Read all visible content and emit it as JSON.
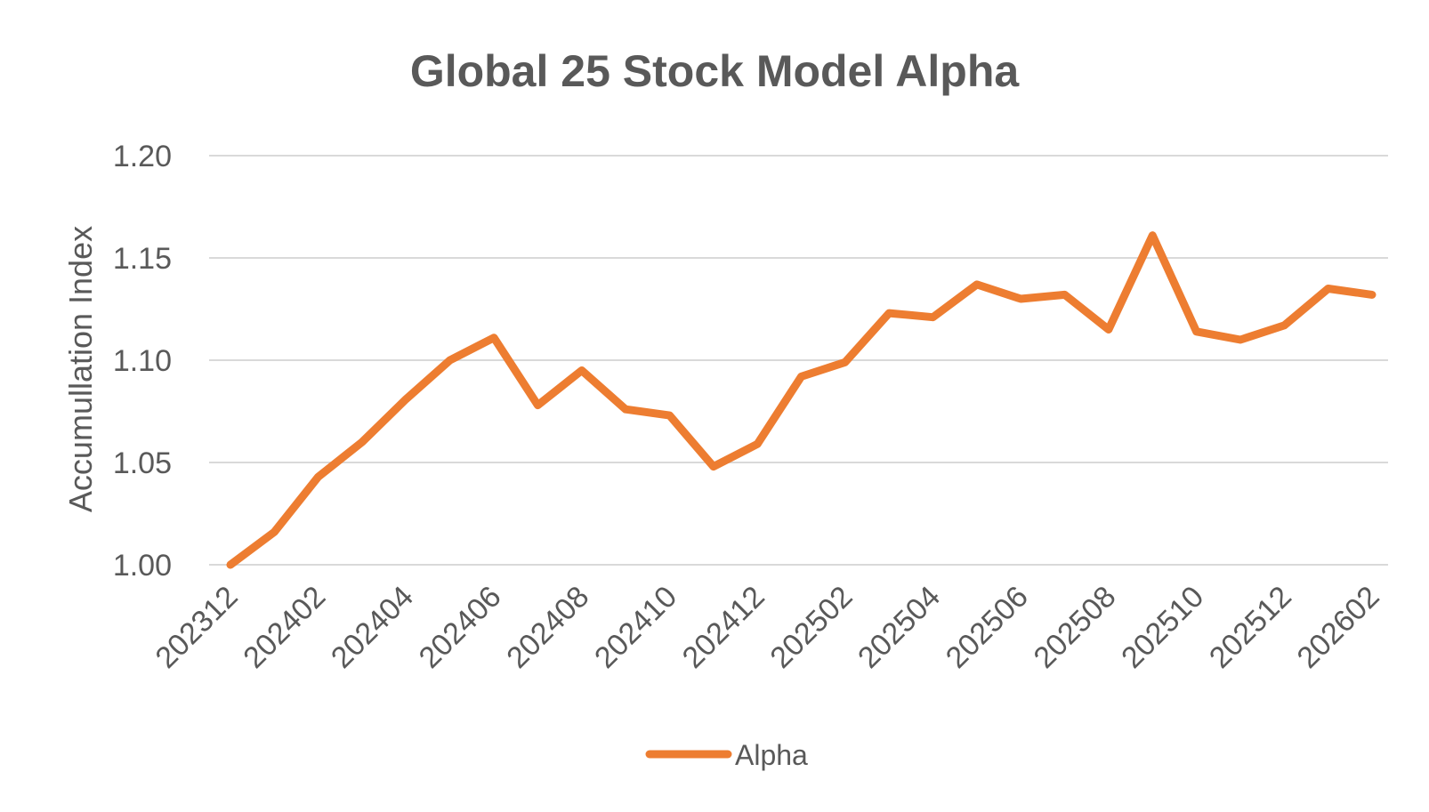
{
  "chart_data": {
    "type": "line",
    "title": "Global 25 Stock Model Alpha",
    "xlabel": "",
    "ylabel": "Accumullation Index",
    "ylim": [
      1.0,
      1.2
    ],
    "yticks": [
      "1.00",
      "1.05",
      "1.10",
      "1.15",
      "1.20"
    ],
    "ytick_values": [
      1.0,
      1.05,
      1.1,
      1.15,
      1.2
    ],
    "grid": true,
    "legend_position": "bottom",
    "x": [
      "202312",
      "202401",
      "202402",
      "202403",
      "202404",
      "202405",
      "202406",
      "202407",
      "202408",
      "202409",
      "202410",
      "202411",
      "202412",
      "202501",
      "202502",
      "202503",
      "202504",
      "202505",
      "202506",
      "202507",
      "202508",
      "202509",
      "202510",
      "202511",
      "202512",
      "202601",
      "202602"
    ],
    "xtick_labels": [
      "202312",
      "202402",
      "202404",
      "202406",
      "202408",
      "202410",
      "202412",
      "202502",
      "202504",
      "202506",
      "202508",
      "202510",
      "202512",
      "202602"
    ],
    "series": [
      {
        "name": "Alpha",
        "color": "#ED7D31",
        "values": [
          1.0,
          1.016,
          1.043,
          1.06,
          1.081,
          1.1,
          1.111,
          1.078,
          1.095,
          1.076,
          1.073,
          1.048,
          1.059,
          1.092,
          1.099,
          1.123,
          1.121,
          1.137,
          1.13,
          1.132,
          1.115,
          1.161,
          1.114,
          1.11,
          1.117,
          1.135,
          1.132
        ]
      }
    ]
  }
}
